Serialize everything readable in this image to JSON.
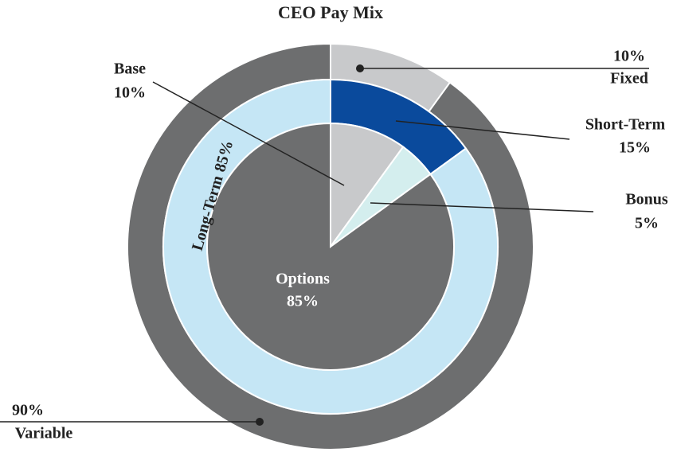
{
  "chart_data": {
    "type": "sunburst",
    "title": "CEO Pay Mix",
    "rings": [
      {
        "labels": [
          "Fixed",
          "Variable"
        ],
        "values": [
          10,
          90
        ],
        "value_labels": [
          "10%",
          "90%"
        ],
        "colors": [
          "#c8c9cb",
          "#6d6e6f"
        ]
      },
      {
        "labels": [
          "Short-Term",
          "Long-Term"
        ],
        "values": [
          15,
          85
        ],
        "value_labels": [
          "15%",
          "85%"
        ],
        "colors": [
          "#0a4a9c",
          "#c5e6f5"
        ]
      },
      {
        "labels": [
          "Base",
          "Bonus",
          "Options"
        ],
        "values": [
          10,
          5,
          85
        ],
        "value_labels": [
          "10%",
          "5%",
          "85%"
        ],
        "colors": [
          "#c8c9cb",
          "#d4eeee",
          "#6d6e6f"
        ]
      }
    ]
  }
}
